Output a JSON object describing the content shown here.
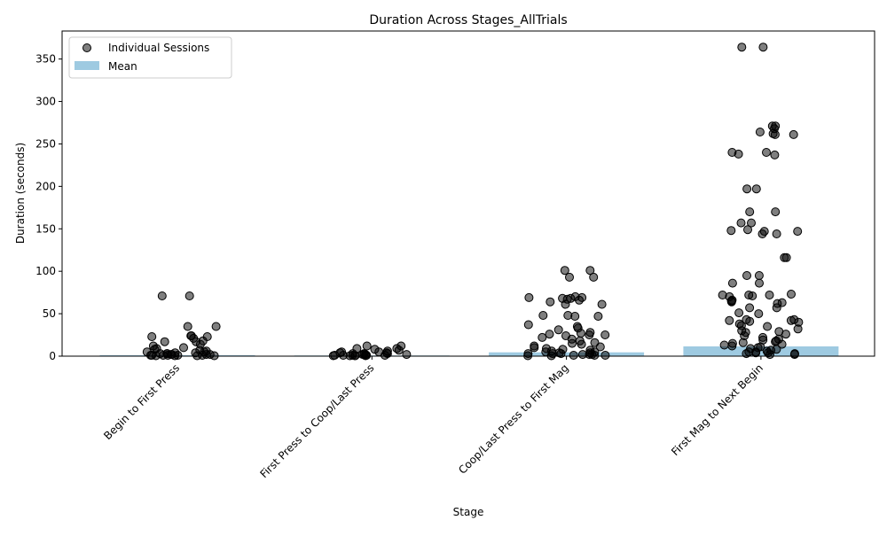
{
  "chart_data": {
    "type": "bar",
    "title": "Duration Across Stages_AllTrials",
    "xlabel": "Stage",
    "ylabel": "Duration (seconds)",
    "ylim": [
      0,
      383
    ],
    "yticks": [
      0,
      50,
      100,
      150,
      200,
      250,
      300,
      350
    ],
    "grid": false,
    "legend_position": "top-left",
    "categories": [
      "Begin to First Press",
      "First Press to Coop/Last Press",
      "Coop/Last Press to First Mag",
      "First Mag to Next Begin"
    ],
    "series": [
      {
        "name": "Mean",
        "kind": "bar",
        "color": "#9ecae1",
        "values": [
          1.2,
          0.8,
          4.5,
          11.5
        ]
      },
      {
        "name": "Individual Sessions",
        "kind": "scatter",
        "color": "#000000",
        "points": [
          [
            0,
            71
          ],
          [
            0,
            71
          ],
          [
            0,
            35
          ],
          [
            0,
            35
          ],
          [
            0,
            24
          ],
          [
            0,
            24
          ],
          [
            0,
            23
          ],
          [
            0,
            23
          ],
          [
            0,
            21
          ],
          [
            0,
            18
          ],
          [
            0,
            17
          ],
          [
            0,
            17
          ],
          [
            0,
            14
          ],
          [
            0,
            12
          ],
          [
            0,
            10
          ],
          [
            0,
            9
          ],
          [
            0,
            8
          ],
          [
            0,
            7
          ],
          [
            0,
            6
          ],
          [
            0,
            5
          ],
          [
            0,
            5
          ],
          [
            0,
            4
          ],
          [
            0,
            4
          ],
          [
            0,
            3
          ],
          [
            0,
            3
          ],
          [
            0,
            3
          ],
          [
            0,
            2
          ],
          [
            0,
            2
          ],
          [
            0,
            2
          ],
          [
            0,
            2
          ],
          [
            0,
            1
          ],
          [
            0,
            1
          ],
          [
            0,
            1
          ],
          [
            0,
            1
          ],
          [
            0,
            1
          ],
          [
            0,
            1
          ],
          [
            0,
            0.5
          ],
          [
            0,
            0.5
          ],
          [
            0,
            0.5
          ],
          [
            0,
            0.5
          ],
          [
            1,
            12
          ],
          [
            1,
            12
          ],
          [
            1,
            9
          ],
          [
            1,
            9
          ],
          [
            1,
            8
          ],
          [
            1,
            7
          ],
          [
            1,
            6
          ],
          [
            1,
            5
          ],
          [
            1,
            5
          ],
          [
            1,
            4
          ],
          [
            1,
            4
          ],
          [
            1,
            3
          ],
          [
            1,
            3
          ],
          [
            1,
            3
          ],
          [
            1,
            2
          ],
          [
            1,
            2
          ],
          [
            1,
            2
          ],
          [
            1,
            2
          ],
          [
            1,
            1
          ],
          [
            1,
            1
          ],
          [
            1,
            1
          ],
          [
            1,
            1
          ],
          [
            1,
            1
          ],
          [
            1,
            0.5
          ],
          [
            1,
            0.5
          ],
          [
            1,
            0.5
          ],
          [
            1,
            0.5
          ],
          [
            1,
            0.5
          ],
          [
            2,
            101
          ],
          [
            2,
            101
          ],
          [
            2,
            93
          ],
          [
            2,
            93
          ],
          [
            2,
            70
          ],
          [
            2,
            69
          ],
          [
            2,
            69
          ],
          [
            2,
            68
          ],
          [
            2,
            68
          ],
          [
            2,
            67
          ],
          [
            2,
            66
          ],
          [
            2,
            64
          ],
          [
            2,
            61
          ],
          [
            2,
            61
          ],
          [
            2,
            48
          ],
          [
            2,
            48
          ],
          [
            2,
            47
          ],
          [
            2,
            47
          ],
          [
            2,
            37
          ],
          [
            2,
            35
          ],
          [
            2,
            33
          ],
          [
            2,
            31
          ],
          [
            2,
            28
          ],
          [
            2,
            27
          ],
          [
            2,
            26
          ],
          [
            2,
            25
          ],
          [
            2,
            25
          ],
          [
            2,
            24
          ],
          [
            2,
            22
          ],
          [
            2,
            20
          ],
          [
            2,
            18
          ],
          [
            2,
            16
          ],
          [
            2,
            15
          ],
          [
            2,
            14
          ],
          [
            2,
            12
          ],
          [
            2,
            11
          ],
          [
            2,
            10
          ],
          [
            2,
            9
          ],
          [
            2,
            8
          ],
          [
            2,
            7
          ],
          [
            2,
            6
          ],
          [
            2,
            5
          ],
          [
            2,
            5
          ],
          [
            2,
            4
          ],
          [
            2,
            4
          ],
          [
            2,
            3
          ],
          [
            2,
            3
          ],
          [
            2,
            3
          ],
          [
            2,
            2
          ],
          [
            2,
            2
          ],
          [
            2,
            2
          ],
          [
            2,
            1
          ],
          [
            2,
            1
          ],
          [
            2,
            1
          ],
          [
            2,
            0.5
          ],
          [
            2,
            0.5
          ],
          [
            3,
            364
          ],
          [
            3,
            364
          ],
          [
            3,
            271
          ],
          [
            3,
            271
          ],
          [
            3,
            268
          ],
          [
            3,
            264
          ],
          [
            3,
            262
          ],
          [
            3,
            261
          ],
          [
            3,
            261
          ],
          [
            3,
            240
          ],
          [
            3,
            240
          ],
          [
            3,
            238
          ],
          [
            3,
            237
          ],
          [
            3,
            197
          ],
          [
            3,
            197
          ],
          [
            3,
            170
          ],
          [
            3,
            170
          ],
          [
            3,
            157
          ],
          [
            3,
            157
          ],
          [
            3,
            149
          ],
          [
            3,
            148
          ],
          [
            3,
            147
          ],
          [
            3,
            147
          ],
          [
            3,
            144
          ],
          [
            3,
            144
          ],
          [
            3,
            116
          ],
          [
            3,
            116
          ],
          [
            3,
            95
          ],
          [
            3,
            95
          ],
          [
            3,
            86
          ],
          [
            3,
            86
          ],
          [
            3,
            73
          ],
          [
            3,
            72
          ],
          [
            3,
            72
          ],
          [
            3,
            72
          ],
          [
            3,
            71
          ],
          [
            3,
            70
          ],
          [
            3,
            66
          ],
          [
            3,
            65
          ],
          [
            3,
            64
          ],
          [
            3,
            63
          ],
          [
            3,
            62
          ],
          [
            3,
            57
          ],
          [
            3,
            57
          ],
          [
            3,
            51
          ],
          [
            3,
            50
          ],
          [
            3,
            43
          ],
          [
            3,
            43
          ],
          [
            3,
            42
          ],
          [
            3,
            42
          ],
          [
            3,
            41
          ],
          [
            3,
            40
          ],
          [
            3,
            38
          ],
          [
            3,
            36
          ],
          [
            3,
            35
          ],
          [
            3,
            32
          ],
          [
            3,
            30
          ],
          [
            3,
            29
          ],
          [
            3,
            28
          ],
          [
            3,
            26
          ],
          [
            3,
            24
          ],
          [
            3,
            22
          ],
          [
            3,
            20
          ],
          [
            3,
            19
          ],
          [
            3,
            18
          ],
          [
            3,
            17
          ],
          [
            3,
            16
          ],
          [
            3,
            15
          ],
          [
            3,
            14
          ],
          [
            3,
            13
          ],
          [
            3,
            12
          ],
          [
            3,
            11
          ],
          [
            3,
            10
          ],
          [
            3,
            9
          ],
          [
            3,
            8
          ],
          [
            3,
            7
          ],
          [
            3,
            6
          ],
          [
            3,
            5
          ],
          [
            3,
            5
          ],
          [
            3,
            4
          ],
          [
            3,
            4
          ],
          [
            3,
            3
          ],
          [
            3,
            3
          ],
          [
            3,
            2
          ],
          [
            3,
            2
          ]
        ]
      }
    ]
  }
}
